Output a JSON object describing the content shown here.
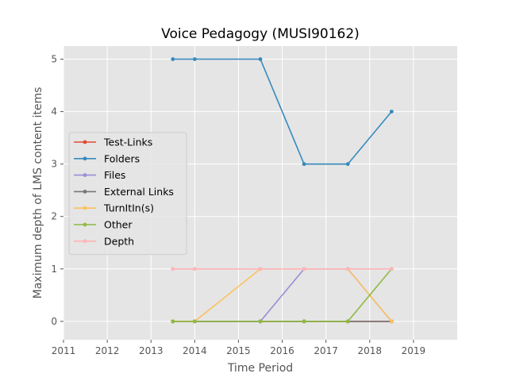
{
  "chart_data": {
    "type": "line",
    "title": "Voice Pedagogy (MUSI90162)",
    "xlabel": "Time Period",
    "ylabel": "Maximum depth of LMS content items",
    "xlim": [
      2011,
      2020
    ],
    "ylim": [
      -0.35,
      5.25
    ],
    "xticks": [
      "2011",
      "2012",
      "2013",
      "2014",
      "2015",
      "2016",
      "2017",
      "2018",
      "2019"
    ],
    "yticks": [
      "0",
      "1",
      "2",
      "3",
      "4",
      "5"
    ],
    "grid": true,
    "legend_position": "center-left",
    "x": [
      2013.5,
      2014.0,
      2015.5,
      2016.5,
      2017.5,
      2018.5
    ],
    "series": [
      {
        "name": "Test-Links",
        "color": "#E24A33",
        "values": [
          0,
          0,
          0,
          0,
          0,
          0
        ]
      },
      {
        "name": "Folders",
        "color": "#348ABD",
        "values": [
          5,
          5,
          5,
          3,
          3,
          4
        ]
      },
      {
        "name": "Files",
        "color": "#988ED5",
        "values": [
          0,
          0,
          0,
          1,
          1,
          0
        ]
      },
      {
        "name": "External Links",
        "color": "#777777",
        "values": [
          0,
          0,
          0,
          0,
          0,
          0
        ]
      },
      {
        "name": "TurnItIn(s)",
        "color": "#FBC15E",
        "values": [
          0,
          0,
          1,
          1,
          1,
          0
        ]
      },
      {
        "name": "Other",
        "color": "#8EBA42",
        "values": [
          0,
          0,
          0,
          0,
          0,
          1
        ]
      },
      {
        "name": "Depth",
        "color": "#FFB5B8",
        "values": [
          1,
          1,
          1,
          1,
          1,
          1
        ]
      }
    ]
  }
}
